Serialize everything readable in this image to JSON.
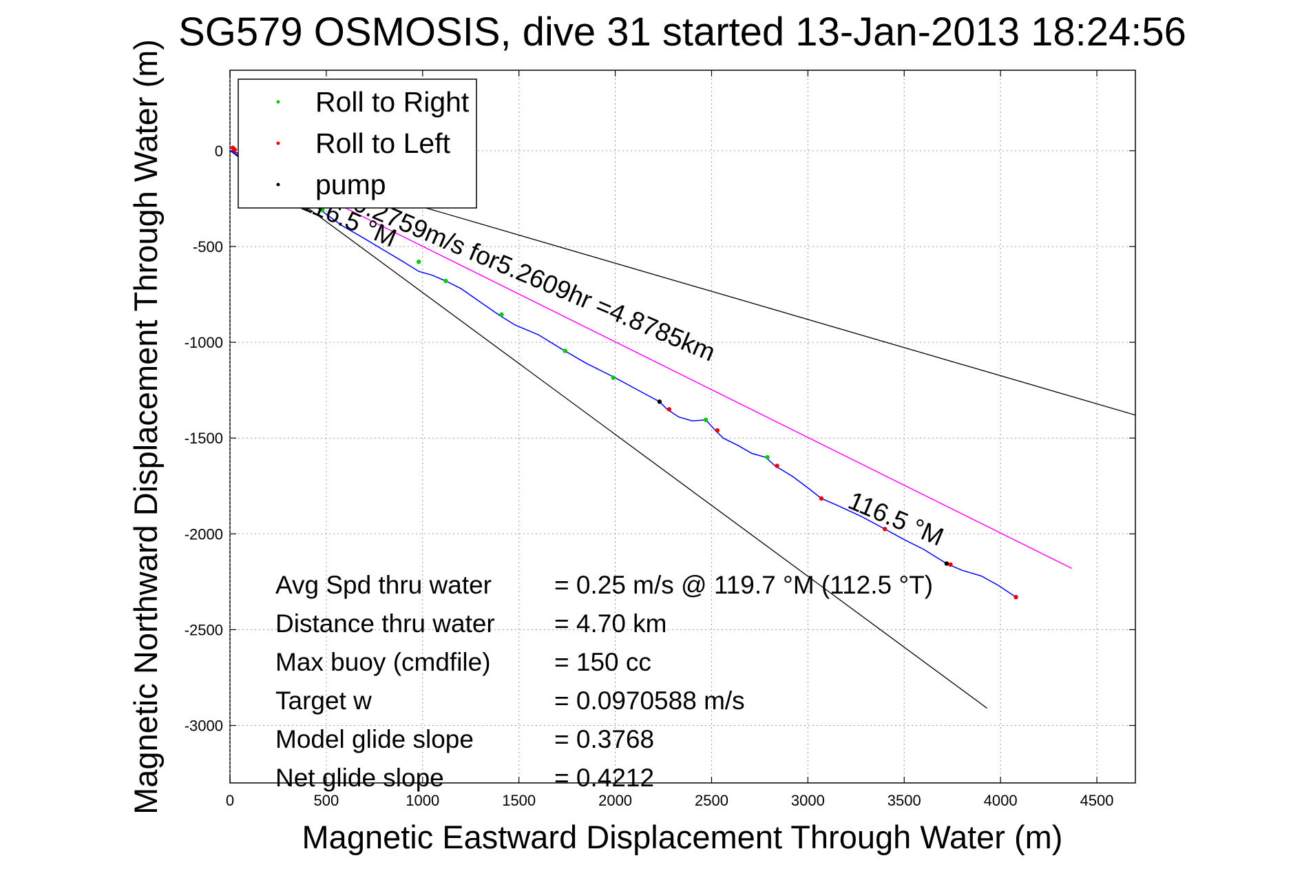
{
  "chart_data": {
    "type": "line",
    "title": "SG579 OSMOSIS, dive 31 started 13-Jan-2013 18:24:56",
    "xlabel": "Magnetic Eastward Displacement Through Water (m)",
    "ylabel": "Magnetic Northward Displacement Through Water (m)",
    "xlim": [
      0,
      4700
    ],
    "ylim": [
      -3300,
      420
    ],
    "xticks": [
      0,
      500,
      1000,
      1500,
      2000,
      2500,
      3000,
      3500,
      4000,
      4500
    ],
    "yticks": [
      0,
      -500,
      -1000,
      -1500,
      -2000,
      -2500,
      -3000
    ],
    "grid": true,
    "legend": {
      "position": "top-left",
      "entries": [
        {
          "label": "Roll to Right",
          "color": "#00cc00"
        },
        {
          "label": "Roll to Left",
          "color": "#ee0000"
        },
        {
          "label": "pump",
          "color": "#000000"
        }
      ]
    },
    "colors": {
      "track": "#0000ff",
      "ideal": "#ff00ff",
      "bound": "#000000"
    },
    "track": {
      "x": [
        0,
        150,
        300,
        450,
        580,
        700,
        800,
        900,
        980,
        1050,
        1120,
        1200,
        1300,
        1400,
        1480,
        1600,
        1730,
        1850,
        1990,
        2100,
        2230,
        2270,
        2330,
        2400,
        2470,
        2520,
        2560,
        2640,
        2710,
        2780,
        2830,
        2920,
        3000,
        3070,
        3150,
        3280,
        3400,
        3500,
        3600,
        3720,
        3800,
        3900,
        3990,
        4080
      ],
      "y": [
        0,
        -90,
        -190,
        -295,
        -390,
        -460,
        -520,
        -580,
        -630,
        -650,
        -680,
        -720,
        -790,
        -860,
        -910,
        -960,
        -1040,
        -1110,
        -1180,
        -1240,
        -1310,
        -1350,
        -1390,
        -1410,
        -1405,
        -1460,
        -1500,
        -1540,
        -1580,
        -1600,
        -1645,
        -1700,
        -1760,
        -1815,
        -1850,
        -1910,
        -1975,
        -2030,
        -2080,
        -2155,
        -2190,
        -2220,
        -2270,
        -2330
      ]
    },
    "markers": {
      "roll_right": {
        "x": [
          480,
          980,
          1120,
          1410,
          1740,
          1990,
          2470,
          2790
        ],
        "y": [
          -310,
          -580,
          -680,
          -855,
          -1045,
          -1185,
          -1405,
          -1600
        ]
      },
      "roll_left": {
        "x": [
          15,
          25,
          2280,
          2530,
          2840,
          3070,
          3400,
          3740,
          4080
        ],
        "y": [
          15,
          5,
          -1350,
          -1460,
          -1645,
          -1815,
          -1975,
          -2160,
          -2330
        ]
      },
      "pump": {
        "x": [
          2230,
          3720
        ],
        "y": [
          -1310,
          -2155
        ]
      }
    },
    "ideal_line": {
      "x": [
        0,
        4370
      ],
      "y": [
        0,
        -2180
      ]
    },
    "bound_lines": [
      {
        "x": [
          0,
          4700
        ],
        "y": [
          0,
          -1380
        ]
      },
      {
        "x": [
          0,
          3930
        ],
        "y": [
          0,
          -2910
        ]
      }
    ],
    "annotations": [
      {
        "text": "0.2759m/s for5.2609hr =4.8785km",
        "x": 630,
        "y": -305,
        "rotate": 23
      },
      {
        "text": "116.5 °M",
        "x": 360,
        "y": -300,
        "rotate": 23
      },
      {
        "text": "116.5 °M",
        "x": 3200,
        "y": -1860,
        "rotate": 23
      }
    ],
    "stats": [
      {
        "label": "Avg Spd thru water",
        "value": "=  0.25 m/s @ 119.7 °M (112.5 °T)"
      },
      {
        "label": "Distance thru water",
        "value": "=  4.70 km"
      },
      {
        "label": "Max buoy (cmdfile)",
        "value": "= 150 cc"
      },
      {
        "label": "Target w",
        "value": "= 0.0970588 m/s"
      },
      {
        "label": "Model glide slope",
        "value": "= 0.3768"
      },
      {
        "label": "Net glide slope",
        "value": "= 0.4212"
      }
    ]
  }
}
